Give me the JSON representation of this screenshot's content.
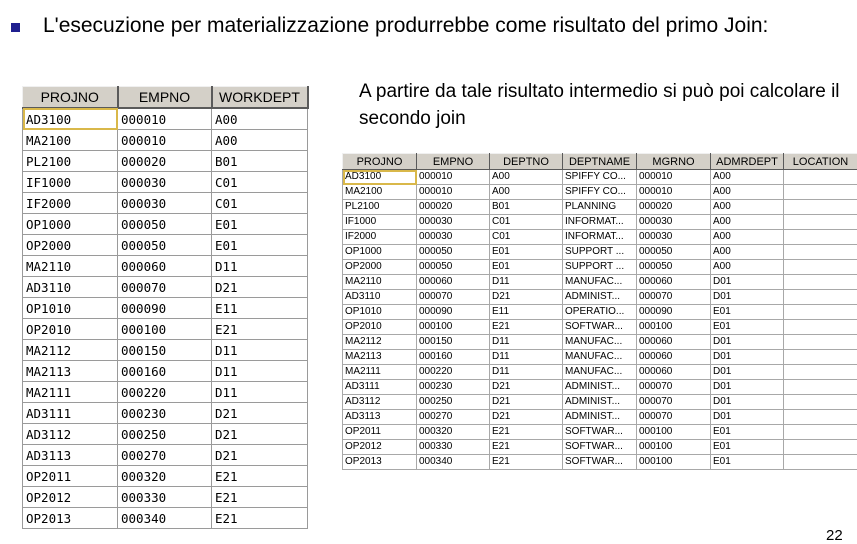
{
  "bullet_text": "L'esecuzione per materializzazione produrrebbe come risultato del primo Join:",
  "side_text": "A partire da tale risultato intermedio si può poi calcolare il secondo join",
  "page_number": "22",
  "table1": {
    "headers": [
      "PROJNO",
      "EMPNO",
      "WORKDEPT"
    ],
    "rows": [
      [
        "AD3100",
        "000010",
        "A00"
      ],
      [
        "MA2100",
        "000010",
        "A00"
      ],
      [
        "PL2100",
        "000020",
        "B01"
      ],
      [
        "IF1000",
        "000030",
        "C01"
      ],
      [
        "IF2000",
        "000030",
        "C01"
      ],
      [
        "OP1000",
        "000050",
        "E01"
      ],
      [
        "OP2000",
        "000050",
        "E01"
      ],
      [
        "MA2110",
        "000060",
        "D11"
      ],
      [
        "AD3110",
        "000070",
        "D21"
      ],
      [
        "OP1010",
        "000090",
        "E11"
      ],
      [
        "OP2010",
        "000100",
        "E21"
      ],
      [
        "MA2112",
        "000150",
        "D11"
      ],
      [
        "MA2113",
        "000160",
        "D11"
      ],
      [
        "MA2111",
        "000220",
        "D11"
      ],
      [
        "AD3111",
        "000230",
        "D21"
      ],
      [
        "AD3112",
        "000250",
        "D21"
      ],
      [
        "AD3113",
        "000270",
        "D21"
      ],
      [
        "OP2011",
        "000320",
        "E21"
      ],
      [
        "OP2012",
        "000330",
        "E21"
      ],
      [
        "OP2013",
        "000340",
        "E21"
      ]
    ]
  },
  "table2": {
    "headers": [
      "PROJNO",
      "EMPNO",
      "DEPTNO",
      "DEPTNAME",
      "MGRNO",
      "ADMRDEPT",
      "LOCATION"
    ],
    "rows": [
      [
        "AD3100",
        "000010",
        "A00",
        "SPIFFY CO...",
        "000010",
        "A00",
        ""
      ],
      [
        "MA2100",
        "000010",
        "A00",
        "SPIFFY CO...",
        "000010",
        "A00",
        ""
      ],
      [
        "PL2100",
        "000020",
        "B01",
        "PLANNING",
        "000020",
        "A00",
        ""
      ],
      [
        "IF1000",
        "000030",
        "C01",
        "INFORMAT...",
        "000030",
        "A00",
        ""
      ],
      [
        "IF2000",
        "000030",
        "C01",
        "INFORMAT...",
        "000030",
        "A00",
        ""
      ],
      [
        "OP1000",
        "000050",
        "E01",
        "SUPPORT ...",
        "000050",
        "A00",
        ""
      ],
      [
        "OP2000",
        "000050",
        "E01",
        "SUPPORT ...",
        "000050",
        "A00",
        ""
      ],
      [
        "MA2110",
        "000060",
        "D11",
        "MANUFAC...",
        "000060",
        "D01",
        ""
      ],
      [
        "AD3110",
        "000070",
        "D21",
        "ADMINIST...",
        "000070",
        "D01",
        ""
      ],
      [
        "OP1010",
        "000090",
        "E11",
        "OPERATIO...",
        "000090",
        "E01",
        ""
      ],
      [
        "OP2010",
        "000100",
        "E21",
        "SOFTWAR...",
        "000100",
        "E01",
        ""
      ],
      [
        "MA2112",
        "000150",
        "D11",
        "MANUFAC...",
        "000060",
        "D01",
        ""
      ],
      [
        "MA2113",
        "000160",
        "D11",
        "MANUFAC...",
        "000060",
        "D01",
        ""
      ],
      [
        "MA2111",
        "000220",
        "D11",
        "MANUFAC...",
        "000060",
        "D01",
        ""
      ],
      [
        "AD3111",
        "000230",
        "D21",
        "ADMINIST...",
        "000070",
        "D01",
        ""
      ],
      [
        "AD3112",
        "000250",
        "D21",
        "ADMINIST...",
        "000070",
        "D01",
        ""
      ],
      [
        "AD3113",
        "000270",
        "D21",
        "ADMINIST...",
        "000070",
        "D01",
        ""
      ],
      [
        "OP2011",
        "000320",
        "E21",
        "SOFTWAR...",
        "000100",
        "E01",
        ""
      ],
      [
        "OP2012",
        "000330",
        "E21",
        "SOFTWAR...",
        "000100",
        "E01",
        ""
      ],
      [
        "OP2013",
        "000340",
        "E21",
        "SOFTWAR...",
        "000100",
        "E01",
        ""
      ]
    ]
  }
}
